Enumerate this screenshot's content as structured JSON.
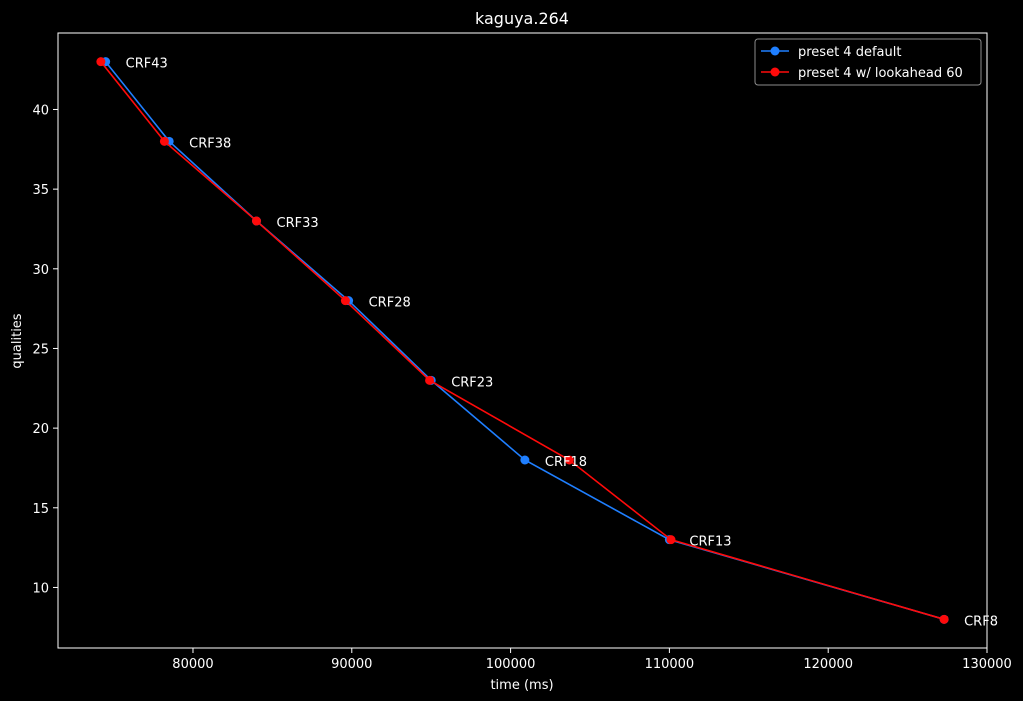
{
  "chart_data": {
    "type": "line",
    "title": "kaguya.264",
    "xlabel": "time (ms)",
    "ylabel": "qualities",
    "xlim": [
      71500,
      130000
    ],
    "ylim": [
      6.2,
      44.8
    ],
    "xticks": [
      80000,
      90000,
      100000,
      110000,
      120000,
      130000
    ],
    "yticks": [
      10,
      15,
      20,
      25,
      30,
      35,
      40
    ],
    "grid": false,
    "legend_position": "top-right",
    "series": [
      {
        "name": "preset 4 default",
        "color": "#1f7fff",
        "x": [
          74500,
          78500,
          84000,
          89800,
          95000,
          100900,
          110000,
          127300
        ],
        "y": [
          43,
          38,
          33,
          28,
          23,
          18,
          13,
          8
        ]
      },
      {
        "name": "preset 4 w/ lookahead 60",
        "color": "#ff0a0a",
        "x": [
          74200,
          78200,
          84000,
          89600,
          94900,
          103700,
          110100,
          127300
        ],
        "y": [
          43,
          38,
          33,
          28,
          23,
          18,
          13,
          8
        ]
      }
    ],
    "annotations": [
      {
        "text": "CRF43",
        "x": 74500,
        "y": 43
      },
      {
        "text": "CRF38",
        "x": 78500,
        "y": 38
      },
      {
        "text": "CRF33",
        "x": 84000,
        "y": 33
      },
      {
        "text": "CRF28",
        "x": 89800,
        "y": 28
      },
      {
        "text": "CRF23",
        "x": 95000,
        "y": 23
      },
      {
        "text": "CRF18",
        "x": 100900,
        "y": 18
      },
      {
        "text": "CRF13",
        "x": 110000,
        "y": 13
      },
      {
        "text": "CRF8",
        "x": 127300,
        "y": 8
      }
    ]
  }
}
